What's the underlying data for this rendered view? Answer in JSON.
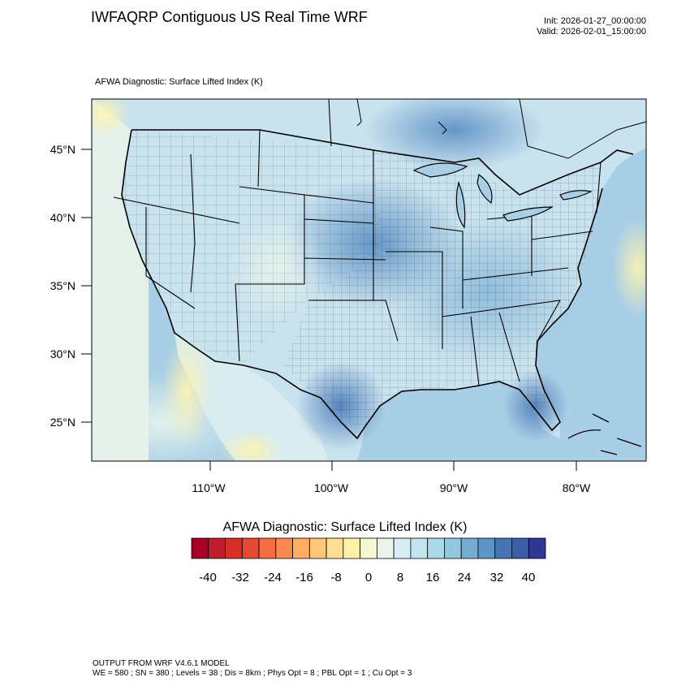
{
  "header": {
    "title": "IWFAQRP Contiguous US Real Time WRF",
    "init": "Init: 2026-01-27_00:00:00",
    "valid": "Valid: 2026-02-01_15:00:00"
  },
  "map": {
    "subtitle": "AFWA Diagnostic: Surface Lifted Index   (K)",
    "lat_labels": [
      "45°N",
      "40°N",
      "35°N",
      "30°N",
      "25°N"
    ],
    "lon_labels": [
      "110°W",
      "100°W",
      "90°W",
      "80°W"
    ],
    "colors": {
      "land_base": "#c8e2ee",
      "ocean_base": "#a9cfe6",
      "border": "#000000"
    }
  },
  "colorbar": {
    "title": "AFWA Diagnostic: Surface Lifted Index  (K)",
    "tick_labels": [
      "-40",
      "-32",
      "-24",
      "-16",
      "-8",
      "0",
      "8",
      "16",
      "24",
      "32",
      "40"
    ],
    "colors": [
      "#a50026",
      "#be1e2a",
      "#d73027",
      "#e34a33",
      "#f46d43",
      "#f8894f",
      "#fdae61",
      "#fdc678",
      "#fee090",
      "#fff0a8",
      "#f5f8d2",
      "#e8f4ec",
      "#d8eef4",
      "#c2e4ef",
      "#abd9e9",
      "#93c7e0",
      "#74add1",
      "#5e95c6",
      "#4575b4",
      "#3a5fa8",
      "#313695"
    ]
  },
  "footer": {
    "line1": "OUTPUT FROM WRF V4.6.1 MODEL",
    "line2": "WE = 580 ; SN = 380 ; Levels = 38 ; Dis = 8km ; Phys Opt = 8 ; PBL Opt = 1 ; Cu Opt = 3"
  }
}
